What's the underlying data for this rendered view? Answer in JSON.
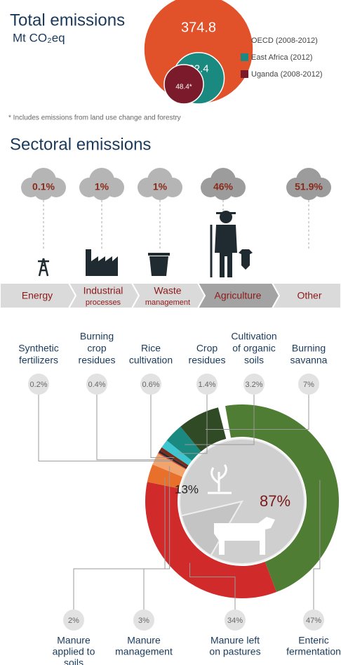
{
  "chart_data": [
    {
      "type": "nested-circles",
      "title": "Total emissions",
      "subtitle": "Mt CO₂eq",
      "categories": [
        "OECD (2008-2012)",
        "East Africa (2012)",
        "Uganda (2008-2012)"
      ],
      "values": [
        374.8,
        82.4,
        48.4
      ],
      "value_labels": [
        "374.8",
        "82.4",
        "48.4*"
      ],
      "colors": [
        "#e2522a",
        "#1a8a80",
        "#7a1a2a"
      ],
      "note": "* Includes emissions from land use change and forestry"
    },
    {
      "type": "donut",
      "categories": [
        [
          "Enteric",
          "fermentation"
        ],
        [
          "Manure left",
          "on pastures"
        ],
        [
          "Manure",
          "management"
        ],
        [
          "Manure",
          "applied to",
          "soils"
        ],
        [
          "Synthetic",
          "fertilizers"
        ],
        [
          "Burning",
          "crop",
          "residues"
        ],
        [
          "Rice",
          "cultivation"
        ],
        [
          "Crop",
          "residues"
        ],
        [
          "Cultivation",
          "of organic",
          "soils"
        ],
        [
          "Burning",
          "savanna"
        ]
      ],
      "values": [
        47,
        34,
        3,
        2,
        0.2,
        0.4,
        0.6,
        1.4,
        3.2,
        7
      ],
      "value_labels": [
        "47%",
        "34%",
        "3%",
        "2%",
        "0.2%",
        "0.4%",
        "0.6%",
        "1.4%",
        "3.2%",
        "7%"
      ],
      "colors": [
        "#4f7d34",
        "#d02a2a",
        "#e8702a",
        "#f2a46e",
        "#e0402a",
        "#2a2a2a",
        "#7a2a1a",
        "#3ec6d0",
        "#1a8a80",
        "#2f4a24"
      ],
      "inner": {
        "values": [
          13,
          87
        ],
        "value_labels": [
          "13%",
          "87%"
        ]
      }
    }
  ],
  "sectoral": {
    "title": "Sectoral emissions",
    "sectors": [
      {
        "label": "Energy",
        "value": 0.1,
        "value_label": "0.1%"
      },
      {
        "label": "Industrial",
        "sublabel": "processes",
        "value": 1,
        "value_label": "1%"
      },
      {
        "label": "Waste",
        "sublabel": "management",
        "value": 1,
        "value_label": "1%"
      },
      {
        "label": "Agriculture",
        "value": 46,
        "value_label": "46%"
      },
      {
        "label": "Other",
        "value": 51.9,
        "value_label": "51.9%"
      }
    ]
  }
}
